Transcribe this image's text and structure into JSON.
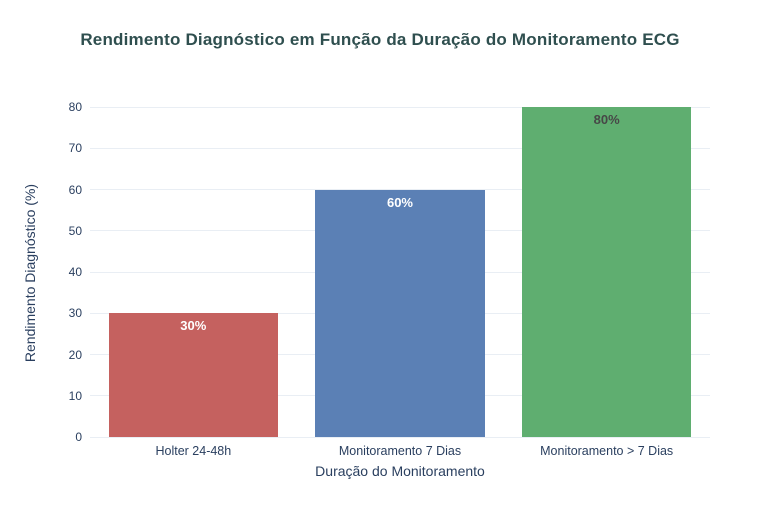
{
  "chart_data": {
    "type": "bar",
    "title": "Rendimento Diagnóstico em Função da Duração do Monitoramento ECG",
    "xlabel": "Duração do Monitoramento",
    "ylabel": "Rendimento Diagnóstico (%)",
    "categories": [
      "Holter 24-48h",
      "Monitoramento 7 Dias",
      "Monitoramento > 7 Dias"
    ],
    "values": [
      30,
      60,
      80
    ],
    "bar_labels": [
      "30%",
      "60%",
      "80%"
    ],
    "bar_colors": [
      "#c5615f",
      "#5b80b5",
      "#5fae70"
    ],
    "bar_label_colors": [
      "#ffffff",
      "#ffffff",
      "#474747"
    ],
    "ylim": [
      0,
      80
    ],
    "ytick_step": 10,
    "yticks": [
      0,
      10,
      20,
      30,
      40,
      50,
      60,
      70,
      80
    ],
    "grid": true,
    "legend_position": "none",
    "bar_width_fraction": 0.82
  },
  "colors": {
    "title": "#2f4f4f",
    "axis_text": "#2a3f5f",
    "gridline": "#e9eef4",
    "background": "#ffffff"
  }
}
